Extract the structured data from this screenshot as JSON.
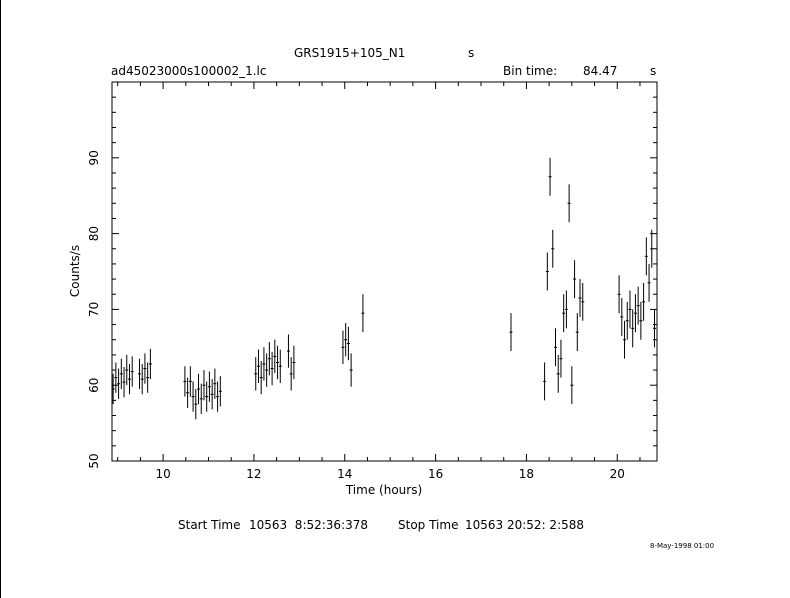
{
  "header": {
    "object": "GRS1915+105_N1",
    "object_unit": "s",
    "filename": "ad45023000s100002_1.lc",
    "bin_time_label": "Bin time:",
    "bin_time_value": "84.47",
    "bin_time_unit": "s"
  },
  "footer": {
    "start_label": "Start Time",
    "start_value": "10563  8:52:36:378",
    "stop_label": "Stop Time",
    "stop_value": "10563 20:52: 2:588",
    "stamp": "8-May-1998 01:00"
  },
  "chart_data": {
    "type": "scatter",
    "xlabel": "Time (hours)",
    "ylabel": "Counts/s",
    "xlim": [
      8.875,
      20.875
    ],
    "ylim": [
      50,
      100
    ],
    "xticks": [
      10,
      12,
      14,
      16,
      18,
      20
    ],
    "yticks": [
      50,
      60,
      70,
      80,
      90
    ],
    "grid": false,
    "error_bars": true,
    "x": [
      8.9,
      8.96,
      9.02,
      9.08,
      9.14,
      9.2,
      9.26,
      9.32,
      9.48,
      9.54,
      9.6,
      9.66,
      9.72,
      10.48,
      10.54,
      10.6,
      10.66,
      10.72,
      10.78,
      10.84,
      10.9,
      10.96,
      11.02,
      11.08,
      11.14,
      11.2,
      11.26,
      12.04,
      12.1,
      12.16,
      12.22,
      12.28,
      12.34,
      12.4,
      12.46,
      12.52,
      12.58,
      12.76,
      12.82,
      12.88,
      13.96,
      14.02,
      14.08,
      14.14,
      14.4,
      17.66,
      18.4,
      18.46,
      18.52,
      18.58,
      18.64,
      18.7,
      18.76,
      18.82,
      18.88,
      18.94,
      19.0,
      19.06,
      19.12,
      19.18,
      19.24,
      20.04,
      20.1,
      20.16,
      20.22,
      20.28,
      20.34,
      20.4,
      20.46,
      20.52,
      20.58,
      20.64,
      20.7,
      20.76,
      20.82
    ],
    "y": [
      59.5,
      61.0,
      60.2,
      61.5,
      60.4,
      62.0,
      60.8,
      61.8,
      61.5,
      60.8,
      62.2,
      61.0,
      62.8,
      60.5,
      59.0,
      60.5,
      58.5,
      57.5,
      59.5,
      58.2,
      60.0,
      58.5,
      59.8,
      58.8,
      60.2,
      58.5,
      59.2,
      61.5,
      62.5,
      61.0,
      62.8,
      62.0,
      63.5,
      62.2,
      63.8,
      63.0,
      62.5,
      64.5,
      61.5,
      63.0,
      65.0,
      66.0,
      65.5,
      62.0,
      69.5,
      67.0,
      60.5,
      75.0,
      87.5,
      78.0,
      65.0,
      61.5,
      63.5,
      69.5,
      70.0,
      84.0,
      60.0,
      74.0,
      67.0,
      71.5,
      71.0,
      72.0,
      69.0,
      66.0,
      68.5,
      70.0,
      67.5,
      69.5,
      70.5,
      68.5,
      71.0,
      77.0,
      73.5,
      78.0,
      67.5
    ],
    "yerr": [
      2.0,
      2.0,
      2.0,
      2.0,
      2.0,
      2.0,
      2.0,
      2.0,
      2.0,
      2.0,
      2.0,
      2.0,
      2.0,
      2.0,
      2.0,
      2.0,
      2.0,
      2.0,
      2.0,
      2.0,
      2.0,
      2.0,
      2.0,
      2.0,
      2.0,
      2.0,
      2.0,
      2.2,
      2.2,
      2.2,
      2.2,
      2.2,
      2.2,
      2.2,
      2.2,
      2.2,
      2.2,
      2.2,
      2.2,
      2.2,
      2.2,
      2.2,
      2.2,
      2.2,
      2.5,
      2.5,
      2.5,
      2.5,
      2.5,
      2.5,
      2.5,
      2.5,
      2.5,
      2.5,
      2.5,
      2.5,
      2.5,
      2.5,
      2.5,
      2.5,
      2.5,
      2.5,
      2.5,
      2.5,
      2.5,
      2.5,
      2.5,
      2.5,
      2.5,
      2.5,
      2.5,
      2.5,
      2.5,
      2.5,
      2.5
    ]
  }
}
